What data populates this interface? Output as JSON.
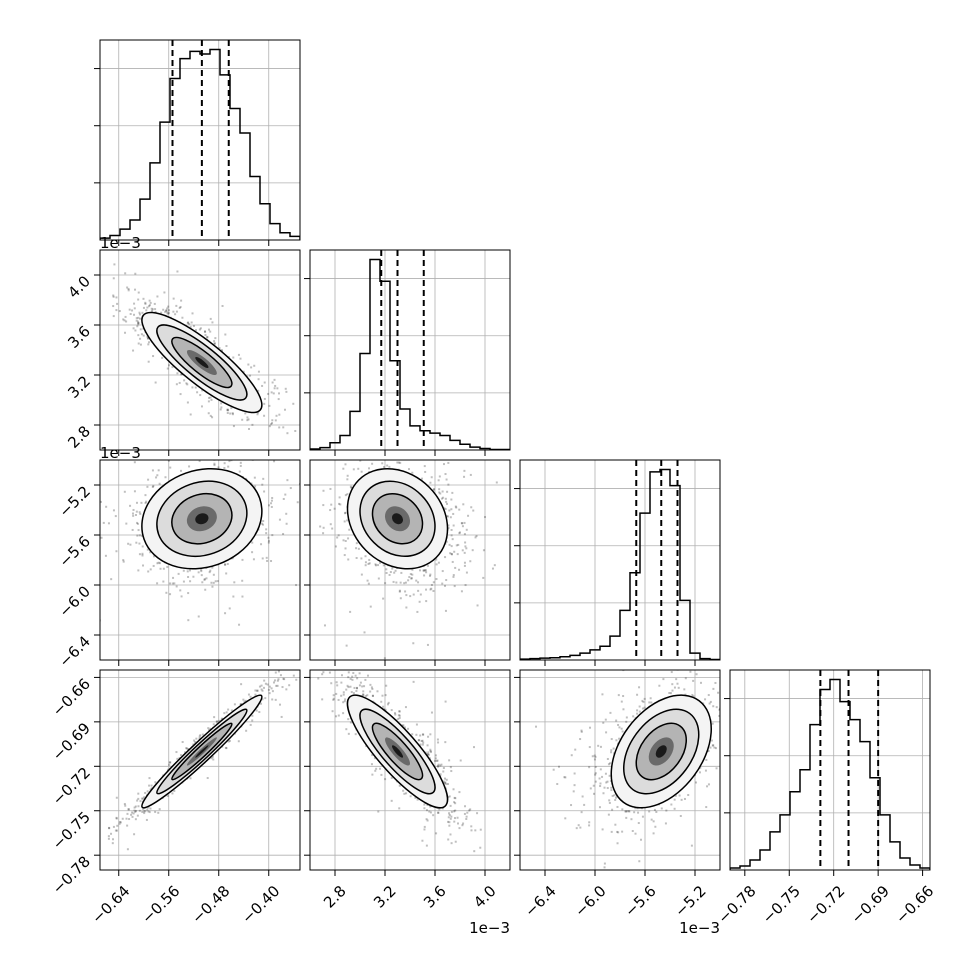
{
  "chart_data": {
    "type": "corner",
    "parameters": [
      {
        "range": [
          -0.67,
          -0.35
        ],
        "ticks": [
          -0.64,
          -0.56,
          -0.48,
          -0.4
        ],
        "tick_labels": [
          "−0.64",
          "−0.56",
          "−0.48",
          "−0.40"
        ],
        "scale_label": "",
        "median": -0.507,
        "q16": -0.554,
        "q84": -0.464,
        "mean": -0.51,
        "sd": 0.048
      },
      {
        "range": [
          2.6,
          4.2
        ],
        "ticks": [
          2.8,
          3.2,
          3.6,
          4.0
        ],
        "tick_labels": [
          "2.8",
          "3.2",
          "3.6",
          "4.0"
        ],
        "scale_label": "1e−3",
        "median": 3.3,
        "q16": 3.17,
        "q84": 3.51,
        "mean": 3.33,
        "sd": 0.2
      },
      {
        "range": [
          -6.6,
          -5.0
        ],
        "ticks": [
          -6.4,
          -6.0,
          -5.6,
          -5.2
        ],
        "tick_labels": [
          "−6.4",
          "−6.0",
          "−5.6",
          "−5.2"
        ],
        "scale_label": "1e−3",
        "median": -5.47,
        "q16": -5.67,
        "q84": -5.34,
        "mean": -5.5,
        "sd": 0.2
      },
      {
        "range": [
          -0.79,
          -0.655
        ],
        "ticks": [
          -0.78,
          -0.75,
          -0.72,
          -0.69,
          -0.66
        ],
        "tick_labels": [
          "−0.78",
          "−0.75",
          "−0.72",
          "−0.69",
          "−0.66"
        ],
        "scale_label": "",
        "median": -0.71,
        "q16": -0.729,
        "q84": -0.69,
        "mean": -0.71,
        "sd": 0.019
      }
    ],
    "histograms": [
      {
        "param": 0,
        "bins": 20,
        "counts": [
          2,
          5,
          12,
          22,
          45,
          85,
          130,
          178,
          200,
          208,
          205,
          210,
          182,
          145,
          118,
          70,
          40,
          18,
          8,
          4
        ]
      },
      {
        "param": 1,
        "bins": 20,
        "counts": [
          2,
          5,
          15,
          30,
          80,
          200,
          395,
          350,
          185,
          85,
          50,
          40,
          35,
          30,
          20,
          12,
          6,
          3,
          1,
          1
        ]
      },
      {
        "param": 2,
        "bins": 20,
        "counts": [
          2,
          3,
          4,
          5,
          7,
          10,
          15,
          22,
          30,
          52,
          108,
          190,
          320,
          410,
          415,
          380,
          130,
          15,
          3,
          1
        ]
      },
      {
        "param": 3,
        "bins": 20,
        "counts": [
          2,
          4,
          10,
          20,
          38,
          55,
          78,
          100,
          145,
          180,
          190,
          168,
          150,
          128,
          92,
          55,
          28,
          12,
          5,
          2
        ]
      }
    ],
    "correlations": [
      {
        "x": 0,
        "y": 1,
        "rho": -0.85
      },
      {
        "x": 0,
        "y": 2,
        "rho": 0.15
      },
      {
        "x": 1,
        "y": 2,
        "rho": -0.2
      },
      {
        "x": 0,
        "y": 3,
        "rho": 0.97
      },
      {
        "x": 1,
        "y": 3,
        "rho": -0.85
      },
      {
        "x": 2,
        "y": 3,
        "rho": 0.4
      }
    ],
    "grid": true,
    "colors": {
      "points": "#000000",
      "contour": "#000000",
      "grid": "#b0b0b0",
      "frame": "#000000"
    }
  }
}
